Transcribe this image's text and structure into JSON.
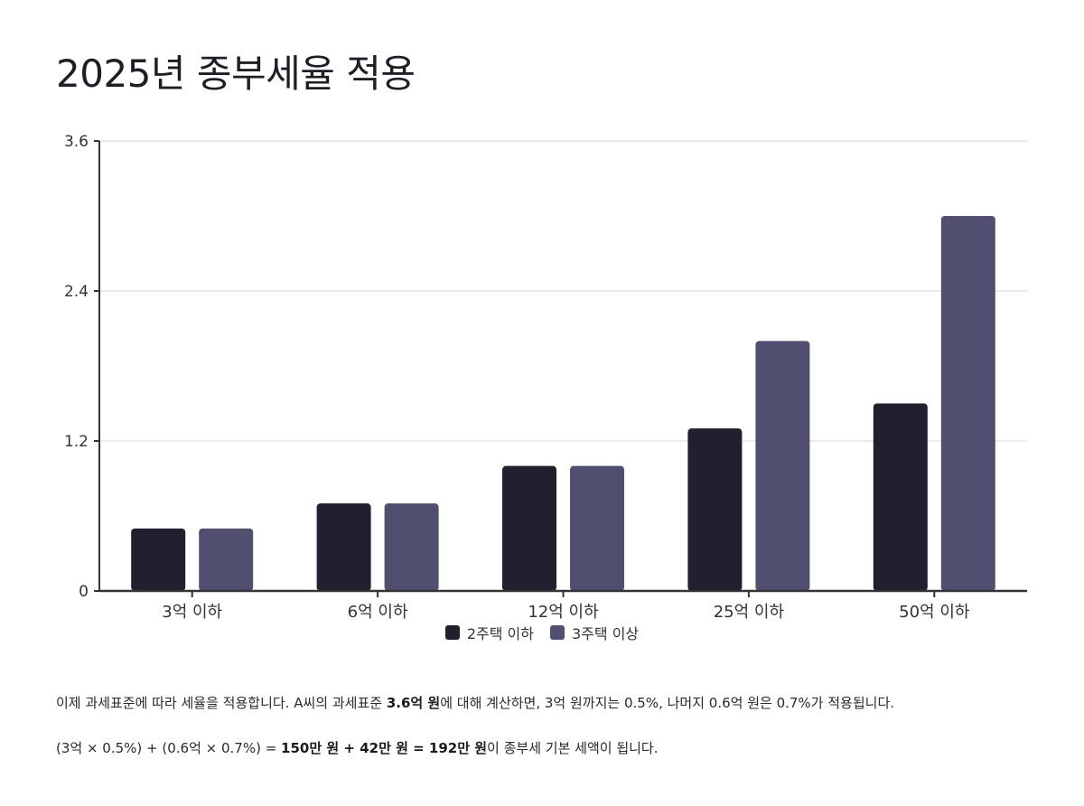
{
  "title": "2025년 종부세율 적용",
  "chart_data": {
    "type": "bar",
    "categories": [
      "3억 이하",
      "6억 이하",
      "12억 이하",
      "25억 이하",
      "50억 이하"
    ],
    "series": [
      {
        "name": "2주택 이하",
        "color": "#20202e",
        "values": [
          0.5,
          0.7,
          1.0,
          1.3,
          1.5
        ]
      },
      {
        "name": "3주택 이상",
        "color": "#504f70",
        "values": [
          0.5,
          0.7,
          1.0,
          2.0,
          3.0
        ]
      }
    ],
    "yticks": [
      "0",
      "1.2",
      "2.4",
      "3.6"
    ],
    "ylim": [
      0,
      3.6
    ],
    "grid": true,
    "legend_position": "bottom"
  },
  "paragraph1": {
    "pre": "이제 과세표준에 따라 세율을 적용합니다. A씨의 과세표준 ",
    "bold": "3.6억 원",
    "post": "에 대해 계산하면, 3억 원까지는 0.5%, 나머지 0.6억 원은 0.7%가 적용됩니다."
  },
  "paragraph2": {
    "pre": "(3억 × 0.5%) + (0.6억 × 0.7%) = ",
    "bold": "150만 원 + 42만 원 = 192만 원",
    "post": "이 종부세 기본 세액이 됩니다."
  }
}
